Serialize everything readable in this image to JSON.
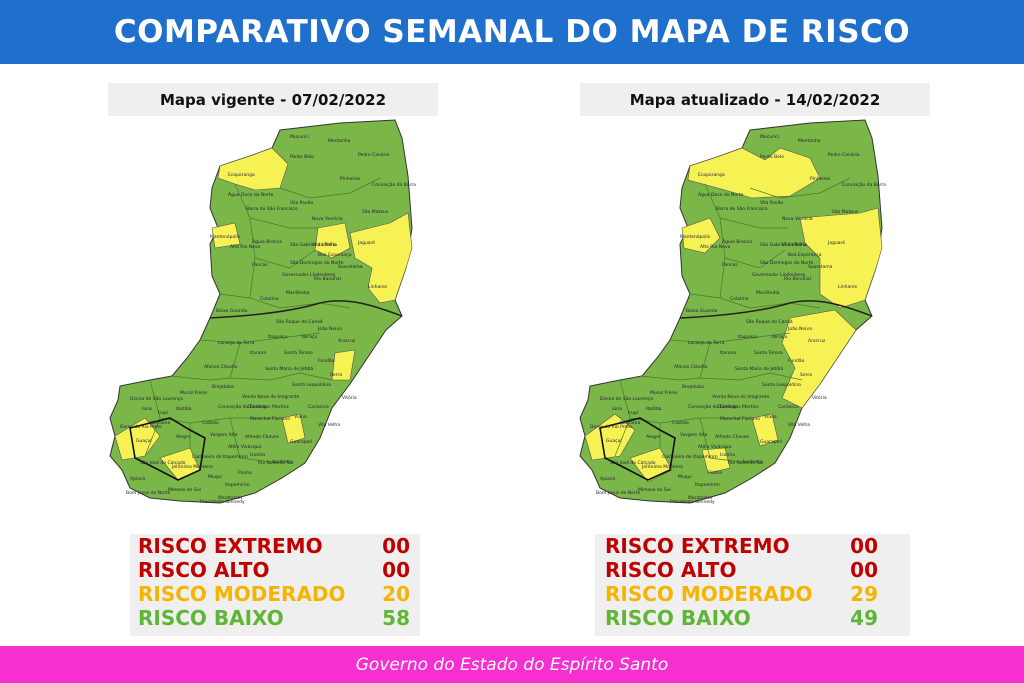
{
  "header": {
    "title": "COMPARATIVO SEMANAL DO MAPA DE RISCO"
  },
  "colors": {
    "extremo": "#c00000",
    "alto": "#c00000",
    "moderado": "#f4b400",
    "baixo": "#5fb536",
    "map_green": "#7ab648",
    "map_yellow": "#f7f254",
    "header_bg": "#1f6fcd",
    "footer_bg": "#f52fd0"
  },
  "panels": [
    {
      "title": "Mapa vigente - 07/02/2022",
      "stats": [
        {
          "label": "RISCO EXTREMO",
          "value": "00"
        },
        {
          "label": "RISCO ALTO",
          "value": "00"
        },
        {
          "label": "RISCO MODERADO",
          "value": "20"
        },
        {
          "label": "RISCO BAIXO",
          "value": "58"
        }
      ]
    },
    {
      "title": "Mapa atualizado - 14/02/2022",
      "stats": [
        {
          "label": "RISCO EXTREMO",
          "value": "00"
        },
        {
          "label": "RISCO ALTO",
          "value": "00"
        },
        {
          "label": "RISCO MODERADO",
          "value": "29"
        },
        {
          "label": "RISCO BAIXO",
          "value": "49"
        }
      ]
    }
  ],
  "municipalities": [
    "Mucurici",
    "Montanha",
    "Pedro Canário",
    "Ecoporanga",
    "Pinheiros",
    "Ponto Belo",
    "Conceição da Barra",
    "São Mateus",
    "Água Doce do Norte",
    "Barra de São Francisco",
    "Vila Pavão",
    "Nova Venécia",
    "Mantenópolis",
    "Alto Rio Novo",
    "Águia Branca",
    "São Gabriel da Palha",
    "Vila Valério",
    "Jaguaré",
    "Pancas",
    "São Domingos do Norte",
    "Sooretama",
    "Governador Lindenberg",
    "Rio Bananal",
    "Linhares",
    "Colatina",
    "Marilândia",
    "Baixo Guandu",
    "Itaguaçu",
    "São Roque do Canaã",
    "João Neiva",
    "Aracruz",
    "Ibiraçu",
    "Laranja da Terra",
    "Santa Teresa",
    "Fundão",
    "Afonso Cláudio",
    "Santa Maria de Jetibá",
    "Serra",
    "Brejetuba",
    "Santa Leopoldina",
    "Iúna",
    "Domingos Martins",
    "Cariacica",
    "Vitória",
    "Vila Velha",
    "Marechal Floriano",
    "Viana",
    "Guarapari",
    "Alfredo Chaves",
    "Castelo",
    "Cachoeiro de Itapemirim",
    "Iconha",
    "Anchieta",
    "Piúma",
    "Itapemirim",
    "Marataízes",
    "Presidente Kennedy",
    "Mimoso do Sul",
    "Apiacá",
    "Atílio Vivácqua",
    "Muqui",
    "Jerônimo Monteiro",
    "Alegre",
    "Guaçuí",
    "Dores do Rio Preto",
    "Divino de São Lourenço",
    "Ibitirama",
    "Muniz Freire",
    "Ibatiba",
    "Irupi",
    "Conceição do Castelo",
    "Venda Nova do Imigrante",
    "Vargem Alta",
    "Rio Novo do Sul",
    "Itarana",
    "Boa Esperança",
    "São José do Calçado",
    "Bom Jesus do Norte"
  ],
  "footer": {
    "text": "Governo do Estado do Espírito Santo"
  }
}
